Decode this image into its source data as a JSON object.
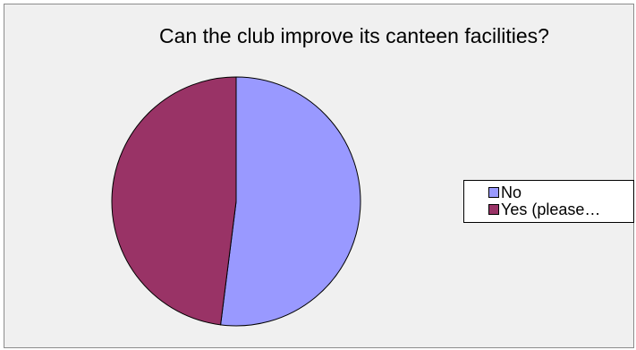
{
  "chart_data": {
    "type": "pie",
    "title": "Can the club improve its canteen facilities?",
    "categories": [
      "No",
      "Yes (please…"
    ],
    "values": [
      52,
      48
    ],
    "colors": [
      "#9999ff",
      "#993366"
    ],
    "legend": "right"
  }
}
